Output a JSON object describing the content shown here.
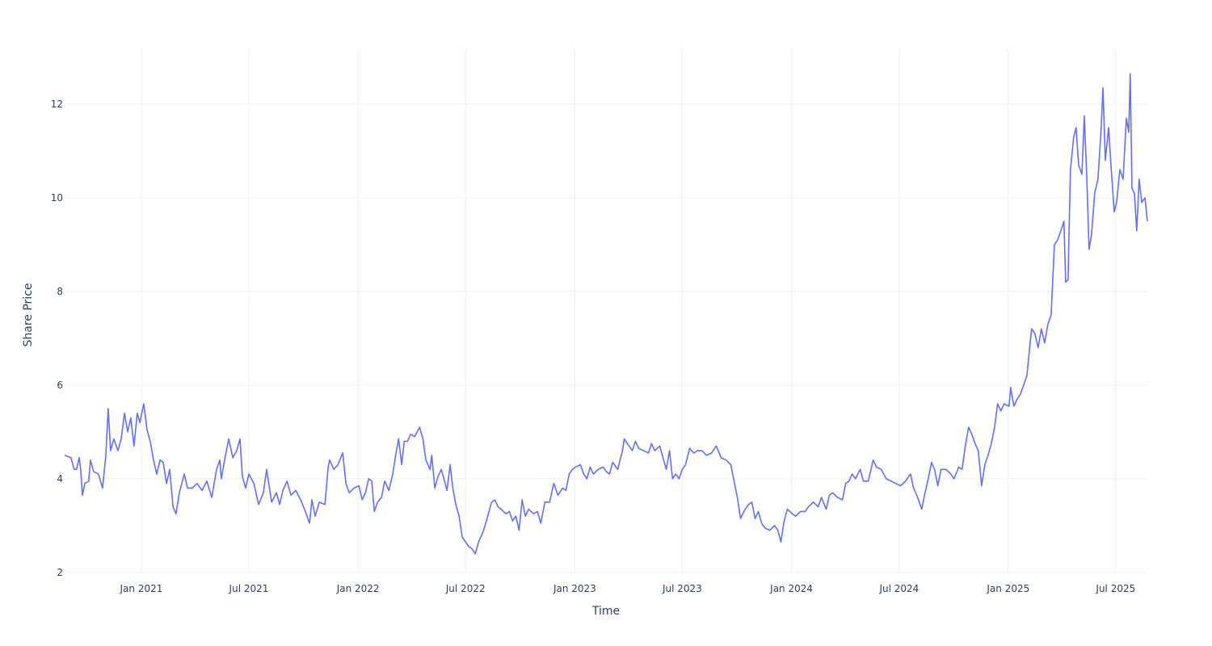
{
  "chart_data": {
    "type": "line",
    "x_label": "Time",
    "y_label": "Share Price",
    "color": "#636efa",
    "grid": true,
    "xlim": [
      2020.646,
      2025.642
    ],
    "ylim": [
      1.98,
      13.19
    ],
    "xticks": [
      {
        "value": 2021,
        "label": "Jan 2021"
      },
      {
        "value": 2021.496,
        "label": "Jul 2021"
      },
      {
        "value": 2022,
        "label": "Jan 2022"
      },
      {
        "value": 2022.496,
        "label": "Jul 2022"
      },
      {
        "value": 2023,
        "label": "Jan 2023"
      },
      {
        "value": 2023.496,
        "label": "Jul 2023"
      },
      {
        "value": 2024,
        "label": "Jan 2024"
      },
      {
        "value": 2024.497,
        "label": "Jul 2024"
      },
      {
        "value": 2025,
        "label": "Jan 2025"
      },
      {
        "value": 2025.496,
        "label": "Jul 2025"
      }
    ],
    "yticks": [
      2,
      4,
      6,
      8,
      10,
      12
    ],
    "x": [
      2020.646,
      2020.675,
      2020.69,
      2020.701,
      2020.713,
      2020.72,
      2020.728,
      2020.739,
      2020.757,
      2020.765,
      2020.78,
      2020.802,
      2020.821,
      2020.836,
      2020.847,
      2020.858,
      2020.873,
      2020.892,
      2020.907,
      2020.922,
      2020.937,
      2020.951,
      2020.966,
      2020.981,
      2020.993,
      2021.011,
      2021.026,
      2021.041,
      2021.056,
      2021.071,
      2021.086,
      2021.101,
      2021.116,
      2021.131,
      2021.146,
      2021.16,
      2021.175,
      2021.198,
      2021.213,
      2021.235,
      2021.257,
      2021.28,
      2021.302,
      2021.325,
      2021.347,
      2021.362,
      2021.369,
      2021.384,
      2021.403,
      2021.422,
      2021.44,
      2021.455,
      2021.466,
      2021.481,
      2021.496,
      2021.519,
      2021.541,
      2021.563,
      2021.578,
      2021.601,
      2021.623,
      2021.638,
      2021.653,
      2021.672,
      2021.69,
      2021.713,
      2021.735,
      2021.757,
      2021.776,
      2021.787,
      2021.802,
      2021.821,
      2021.847,
      2021.862,
      2021.869,
      2021.888,
      2021.907,
      2021.929,
      2021.944,
      2021.959,
      2021.981,
      2022.004,
      2022.019,
      2022.034,
      2022.049,
      2022.063,
      2022.075,
      2022.09,
      2022.108,
      2022.123,
      2022.142,
      2022.16,
      2022.175,
      2022.187,
      2022.201,
      2022.213,
      2022.228,
      2022.243,
      2022.261,
      2022.284,
      2022.299,
      2022.313,
      2022.332,
      2022.34,
      2022.354,
      2022.369,
      2022.384,
      2022.399,
      2022.41,
      2022.425,
      2022.437,
      2022.451,
      2022.466,
      2022.481,
      2022.496,
      2022.511,
      2022.526,
      2022.541,
      2022.556,
      2022.575,
      2022.586,
      2022.601,
      2022.616,
      2022.631,
      2022.646,
      2022.66,
      2022.683,
      2022.698,
      2022.713,
      2022.728,
      2022.743,
      2022.757,
      2022.772,
      2022.787,
      2022.81,
      2022.828,
      2022.843,
      2022.862,
      2022.884,
      2022.903,
      2022.922,
      2022.944,
      2022.959,
      2022.974,
      2022.989,
      2023.004,
      2023.026,
      2023.041,
      2023.056,
      2023.071,
      2023.086,
      2023.108,
      2023.131,
      2023.146,
      2023.16,
      2023.175,
      2023.198,
      2023.22,
      2023.228,
      2023.243,
      2023.265,
      2023.28,
      2023.295,
      2023.317,
      2023.34,
      2023.354,
      2023.369,
      2023.392,
      2023.407,
      2023.422,
      2023.437,
      2023.451,
      2023.466,
      2023.481,
      2023.496,
      2023.511,
      2023.53,
      2023.549,
      2023.567,
      2023.586,
      2023.608,
      2023.631,
      2023.653,
      2023.675,
      2023.698,
      2023.72,
      2023.735,
      2023.75,
      2023.765,
      2023.78,
      2023.802,
      2023.817,
      2023.832,
      2023.847,
      2023.862,
      2023.877,
      2023.899,
      2023.922,
      2023.937,
      2023.951,
      2023.966,
      2023.981,
      2024.004,
      2024.019,
      2024.041,
      2024.063,
      2024.078,
      2024.101,
      2024.123,
      2024.138,
      2024.16,
      2024.175,
      2024.19,
      2024.213,
      2024.235,
      2024.25,
      2024.265,
      2024.28,
      2024.295,
      2024.317,
      2024.332,
      2024.354,
      2024.377,
      2024.392,
      2024.414,
      2024.437,
      2024.459,
      2024.481,
      2024.504,
      2024.526,
      2024.549,
      2024.563,
      2024.578,
      2024.601,
      2024.616,
      2024.631,
      2024.646,
      2024.66,
      2024.675,
      2024.69,
      2024.713,
      2024.735,
      2024.75,
      2024.772,
      2024.787,
      2024.802,
      2024.817,
      2024.832,
      2024.847,
      2024.862,
      2024.877,
      2024.892,
      2024.907,
      2024.922,
      2024.937,
      2024.951,
      2024.966,
      2024.981,
      2025.004,
      2025.011,
      2025.026,
      2025.041,
      2025.056,
      2025.071,
      2025.086,
      2025.101,
      2025.108,
      2025.123,
      2025.138,
      2025.153,
      2025.168,
      2025.183,
      2025.198,
      2025.205,
      2025.213,
      2025.228,
      2025.243,
      2025.257,
      2025.265,
      2025.276,
      2025.287,
      2025.302,
      2025.313,
      2025.325,
      2025.34,
      2025.351,
      2025.362,
      2025.373,
      2025.384,
      2025.399,
      2025.414,
      2025.429,
      2025.437,
      2025.448,
      2025.463,
      2025.474,
      2025.489,
      2025.5,
      2025.515,
      2025.53,
      2025.545,
      2025.556,
      2025.563,
      2025.571,
      2025.582,
      2025.593,
      2025.604,
      2025.616,
      2025.631,
      2025.642
    ],
    "values": [
      4.5,
      4.45,
      4.2,
      4.2,
      4.45,
      4.2,
      3.65,
      3.9,
      3.95,
      4.4,
      4.15,
      4.1,
      3.8,
      4.5,
      5.5,
      4.6,
      4.85,
      4.6,
      4.85,
      5.4,
      5.0,
      5.3,
      4.7,
      5.4,
      5.2,
      5.6,
      5.05,
      4.8,
      4.4,
      4.1,
      4.4,
      4.35,
      3.9,
      4.2,
      3.4,
      3.25,
      3.7,
      4.1,
      3.8,
      3.8,
      3.9,
      3.75,
      3.95,
      3.6,
      4.2,
      4.4,
      4.0,
      4.4,
      4.85,
      4.45,
      4.6,
      4.85,
      4.05,
      3.8,
      4.1,
      3.9,
      3.45,
      3.7,
      4.2,
      3.5,
      3.7,
      3.45,
      3.75,
      3.95,
      3.65,
      3.75,
      3.55,
      3.3,
      3.05,
      3.55,
      3.2,
      3.5,
      3.45,
      4.25,
      4.4,
      4.2,
      4.3,
      4.55,
      3.9,
      3.7,
      3.8,
      3.85,
      3.55,
      3.7,
      4.0,
      3.95,
      3.3,
      3.5,
      3.6,
      3.95,
      3.75,
      4.1,
      4.55,
      4.85,
      4.3,
      4.8,
      4.8,
      4.95,
      4.9,
      5.1,
      4.85,
      4.4,
      4.2,
      4.5,
      3.8,
      4.05,
      4.2,
      3.95,
      3.75,
      4.3,
      3.8,
      3.45,
      3.2,
      2.75,
      2.65,
      2.55,
      2.5,
      2.4,
      2.65,
      2.85,
      3.0,
      3.25,
      3.5,
      3.55,
      3.4,
      3.35,
      3.25,
      3.3,
      3.1,
      3.2,
      2.9,
      3.55,
      3.2,
      3.35,
      3.25,
      3.3,
      3.05,
      3.5,
      3.5,
      3.9,
      3.65,
      3.8,
      3.75,
      4.1,
      4.2,
      4.25,
      4.3,
      4.1,
      4.0,
      4.25,
      4.1,
      4.2,
      4.25,
      4.15,
      4.1,
      4.35,
      4.2,
      4.6,
      4.85,
      4.75,
      4.6,
      4.8,
      4.65,
      4.6,
      4.55,
      4.75,
      4.6,
      4.7,
      4.45,
      4.2,
      4.6,
      4.0,
      4.1,
      4.0,
      4.2,
      4.3,
      4.65,
      4.55,
      4.6,
      4.6,
      4.5,
      4.55,
      4.7,
      4.45,
      4.4,
      4.3,
      3.95,
      3.6,
      3.15,
      3.3,
      3.45,
      3.5,
      3.15,
      3.3,
      3.05,
      2.95,
      2.9,
      3.0,
      2.9,
      2.65,
      3.1,
      3.35,
      3.25,
      3.2,
      3.3,
      3.3,
      3.4,
      3.5,
      3.4,
      3.6,
      3.35,
      3.65,
      3.7,
      3.6,
      3.55,
      3.9,
      3.95,
      4.1,
      4.0,
      4.2,
      3.95,
      3.95,
      4.4,
      4.25,
      4.2,
      4.0,
      3.95,
      3.9,
      3.85,
      3.95,
      4.1,
      3.8,
      3.65,
      3.35,
      3.7,
      4.0,
      4.35,
      4.2,
      3.85,
      4.2,
      4.2,
      4.1,
      4.0,
      4.25,
      4.2,
      4.7,
      5.1,
      4.95,
      4.75,
      4.6,
      3.85,
      4.3,
      4.5,
      4.75,
      5.1,
      5.6,
      5.45,
      5.6,
      5.55,
      5.95,
      5.55,
      5.7,
      5.8,
      6.0,
      6.2,
      6.9,
      7.2,
      7.1,
      6.8,
      7.2,
      6.9,
      7.3,
      7.5,
      8.2,
      9.0,
      9.1,
      9.3,
      9.5,
      8.2,
      8.25,
      10.6,
      11.3,
      11.5,
      10.7,
      10.5,
      11.75,
      10.5,
      8.9,
      9.2,
      10.1,
      10.4,
      11.5,
      12.35,
      10.8,
      11.5,
      10.7,
      9.7,
      9.9,
      10.6,
      10.4,
      11.7,
      11.4,
      12.65,
      10.2,
      10.1,
      9.3,
      10.4,
      9.9,
      10.0,
      9.5
    ]
  }
}
